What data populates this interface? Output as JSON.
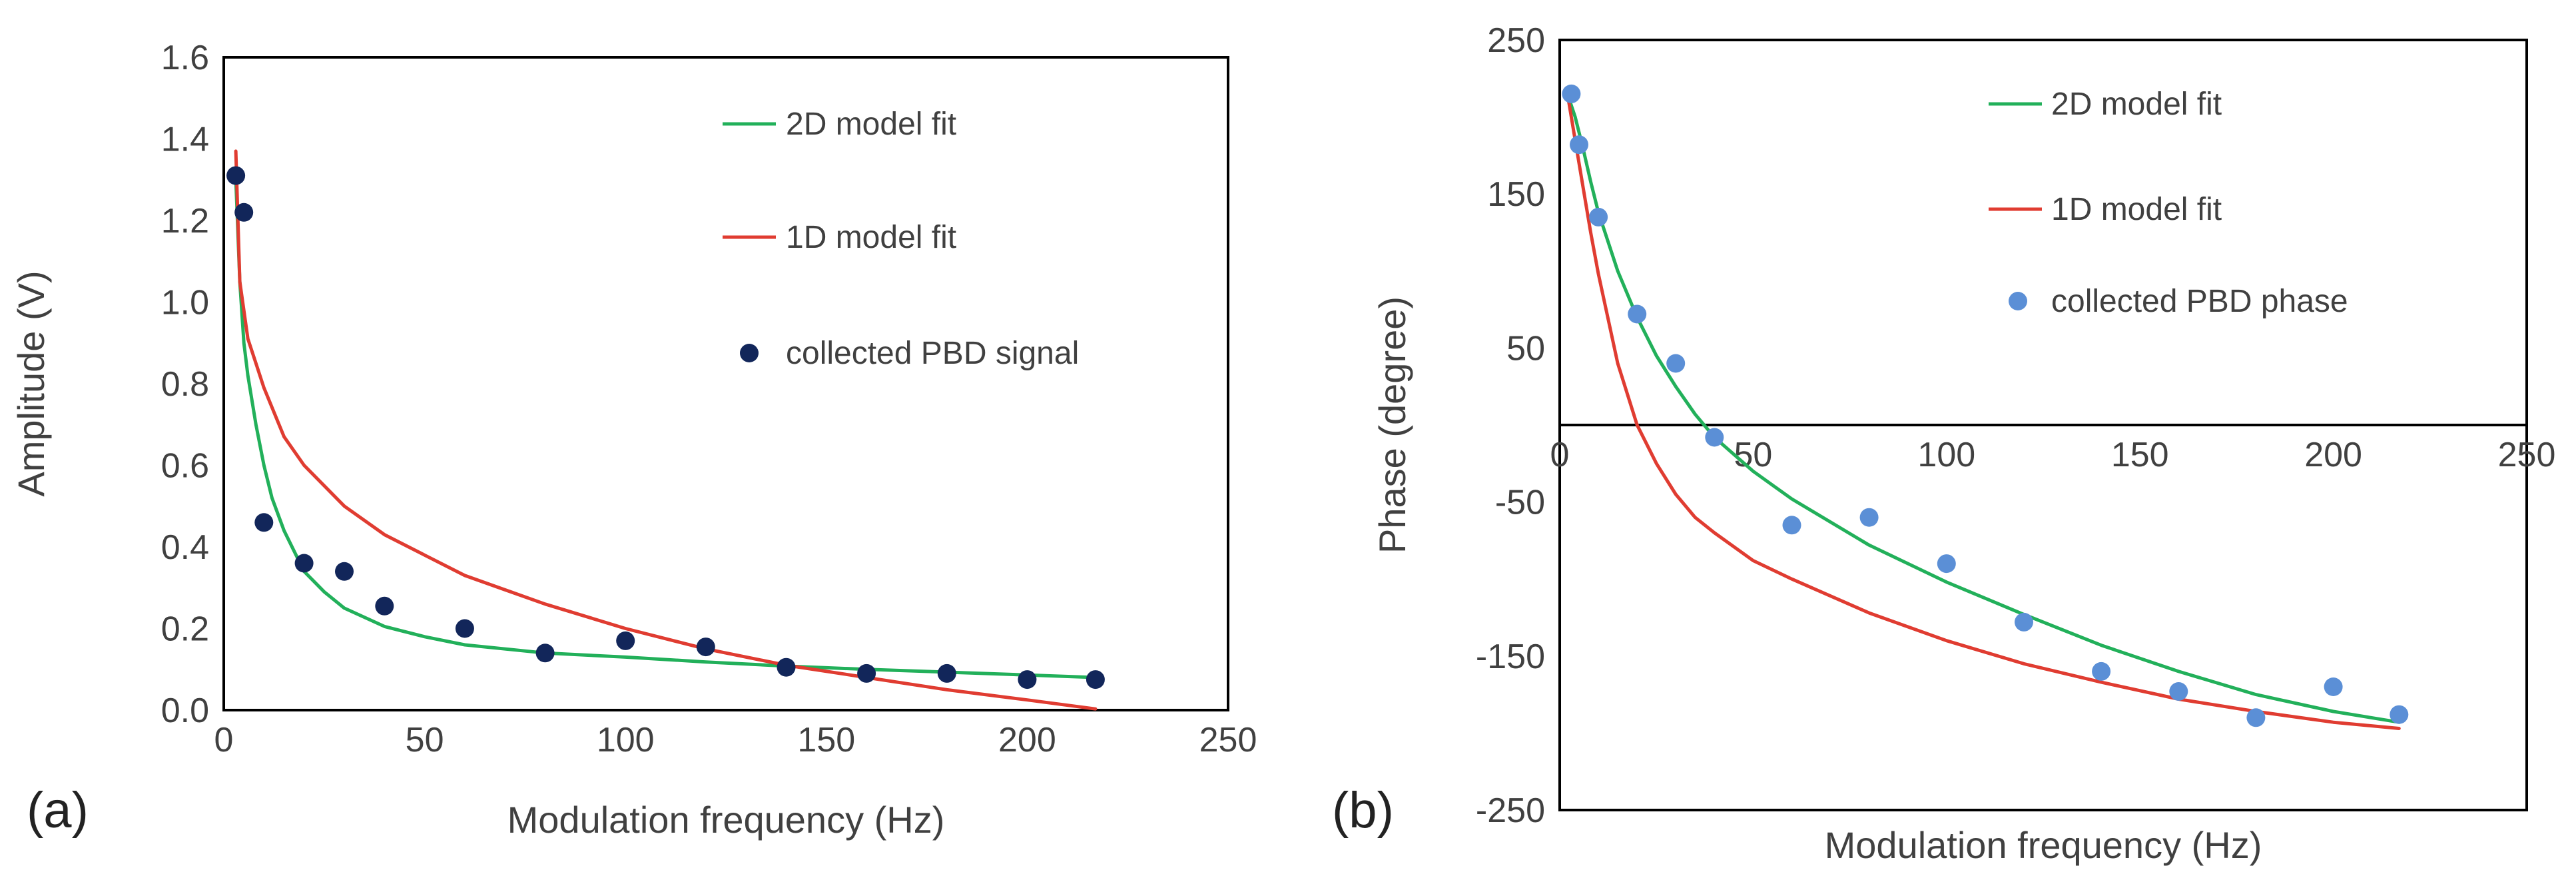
{
  "chart_data": [
    {
      "type": "line",
      "panel_label": "(a)",
      "xlabel": "Modulation frequency (Hz)",
      "ylabel": "Amplitude (V)",
      "xlim": [
        0,
        250
      ],
      "ylim": [
        0,
        1.6
      ],
      "xticks": [
        "0",
        "50",
        "100",
        "150",
        "200",
        "250"
      ],
      "yticks": [
        "0.0",
        "0.2",
        "0.4",
        "0.6",
        "0.8",
        "1.0",
        "1.2",
        "1.4",
        "1.6"
      ],
      "grid": false,
      "legend_position": "top-right",
      "series": [
        {
          "name": "2D model fit",
          "kind": "line",
          "color": "#22b05a",
          "x": [
            3,
            4,
            5,
            6,
            8,
            10,
            12,
            15,
            20,
            25,
            30,
            40,
            50,
            60,
            80,
            100,
            120,
            140,
            160,
            180,
            200,
            217
          ],
          "y": [
            1.3,
            1.05,
            0.9,
            0.82,
            0.7,
            0.6,
            0.52,
            0.44,
            0.34,
            0.29,
            0.25,
            0.205,
            0.18,
            0.16,
            0.14,
            0.13,
            0.118,
            0.108,
            0.1,
            0.093,
            0.086,
            0.08
          ]
        },
        {
          "name": "1D model fit",
          "kind": "line",
          "color": "#e03c31",
          "x": [
            3,
            4,
            6,
            8,
            10,
            15,
            20,
            30,
            40,
            50,
            60,
            80,
            100,
            120,
            140,
            160,
            180,
            200,
            217
          ],
          "y": [
            1.37,
            1.05,
            0.91,
            0.85,
            0.79,
            0.67,
            0.6,
            0.5,
            0.43,
            0.38,
            0.33,
            0.26,
            0.2,
            0.15,
            0.11,
            0.08,
            0.05,
            0.025,
            0.003
          ]
        },
        {
          "name": "collected PBD signal",
          "kind": "scatter",
          "color": "#12265a",
          "x": [
            3,
            5,
            10,
            20,
            30,
            40,
            60,
            80,
            100,
            120,
            140,
            160,
            180,
            200,
            217
          ],
          "y": [
            1.31,
            1.22,
            0.46,
            0.36,
            0.34,
            0.255,
            0.2,
            0.14,
            0.17,
            0.155,
            0.105,
            0.09,
            0.09,
            0.075,
            0.075
          ]
        }
      ]
    },
    {
      "type": "line",
      "panel_label": "(b)",
      "xlabel": "Modulation frequency (Hz)",
      "ylabel": "Phase (degree)",
      "xlim": [
        0,
        250
      ],
      "ylim": [
        -250,
        250
      ],
      "xticks": [
        "0",
        "50",
        "100",
        "150",
        "200",
        "250"
      ],
      "yticks": [
        "-250",
        "-150",
        "-50",
        "50",
        "150",
        "250"
      ],
      "grid": false,
      "legend_position": "top-right",
      "series": [
        {
          "name": "2D model fit",
          "kind": "line",
          "color": "#22b05a",
          "x": [
            2,
            4,
            6,
            8,
            10,
            15,
            20,
            25,
            30,
            35,
            40,
            50,
            60,
            80,
            100,
            120,
            140,
            160,
            180,
            200,
            217
          ],
          "y": [
            215,
            200,
            180,
            158,
            138,
            100,
            70,
            45,
            25,
            7,
            -8,
            -30,
            -48,
            -78,
            -102,
            -123,
            -143,
            -160,
            -175,
            -186,
            -193
          ]
        },
        {
          "name": "1D model fit",
          "kind": "line",
          "color": "#e03c31",
          "x": [
            2,
            4,
            6,
            8,
            10,
            15,
            20,
            25,
            30,
            35,
            40,
            50,
            60,
            80,
            100,
            120,
            140,
            160,
            180,
            200,
            217
          ],
          "y": [
            215,
            185,
            155,
            125,
            98,
            40,
            0,
            -25,
            -45,
            -60,
            -70,
            -88,
            -100,
            -122,
            -140,
            -155,
            -167,
            -178,
            -186,
            -193,
            -197
          ]
        },
        {
          "name": "collected PBD phase",
          "kind": "scatter",
          "color": "#5b8fd6",
          "x": [
            3,
            5,
            10,
            20,
            30,
            40,
            60,
            80,
            100,
            120,
            140,
            160,
            180,
            200,
            217
          ],
          "y": [
            215,
            182,
            135,
            72,
            40,
            -8,
            -65,
            -60,
            -90,
            -128,
            -160,
            -173,
            -190,
            -170,
            -188
          ]
        }
      ]
    }
  ]
}
